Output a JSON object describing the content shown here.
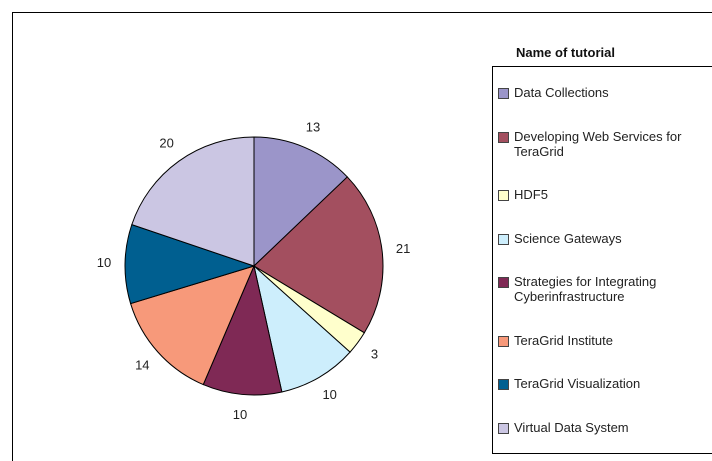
{
  "chart_data": {
    "type": "pie",
    "legend_title": "Name of tutorial",
    "categories": [
      "Data Collections",
      "Developing Web Services for TeraGrid",
      "HDF5",
      "Science Gateways",
      "Strategies for Integrating Cyberinfrastructure",
      "TeraGrid Institute",
      "TeraGrid Visualization",
      "Virtual Data System"
    ],
    "values": [
      13,
      21,
      3,
      10,
      10,
      14,
      10,
      20
    ],
    "colors": [
      "#9b95c9",
      "#a34f5f",
      "#ffffcc",
      "#cdeefc",
      "#7f2955",
      "#f7997a",
      "#005f90",
      "#cbc6e3"
    ]
  }
}
